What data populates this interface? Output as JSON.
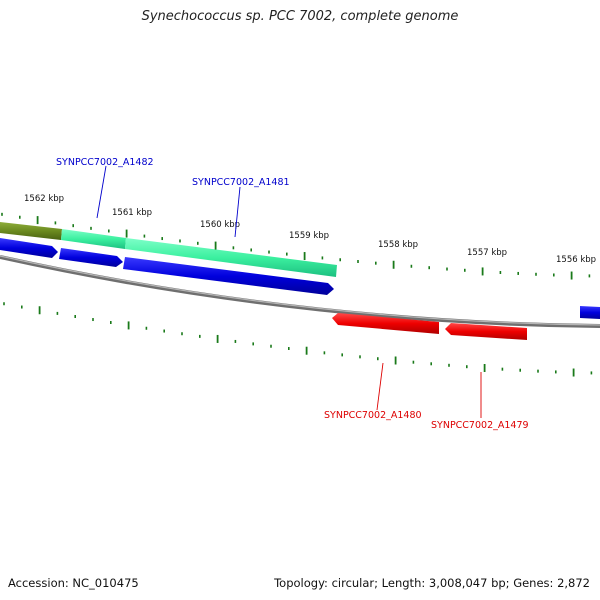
{
  "title": "Synechococcus sp. PCC 7002, complete genome",
  "ticks": [
    {
      "label": "1562 kbp"
    },
    {
      "label": "1561 kbp"
    },
    {
      "label": "1560 kbp"
    },
    {
      "label": "1559 kbp"
    },
    {
      "label": "1558 kbp"
    },
    {
      "label": "1557 kbp"
    },
    {
      "label": "1556 kbp"
    }
  ],
  "genes": [
    {
      "name": "SYNPCC7002_A1482",
      "strand": "forward",
      "color": "#0000cc"
    },
    {
      "name": "SYNPCC7002_A1481",
      "strand": "forward",
      "color": "#0000cc"
    },
    {
      "name": "SYNPCC7002_A1480",
      "strand": "reverse",
      "color": "#dd0000"
    },
    {
      "name": "SYNPCC7002_A1479",
      "strand": "reverse",
      "color": "#dd0000"
    }
  ],
  "colors": {
    "forward_cds": "#0000dd",
    "reverse_cds": "#ee0000",
    "highlight_1": "#3cf0a0",
    "highlight_2": "#6b8a1f",
    "backbone": "#808080",
    "ticks": "#1a7a1a"
  },
  "footer": {
    "accession": "Accession: NC_010475",
    "summary": "Topology: circular; Length: 3,008,047 bp; Genes: 2,872"
  }
}
